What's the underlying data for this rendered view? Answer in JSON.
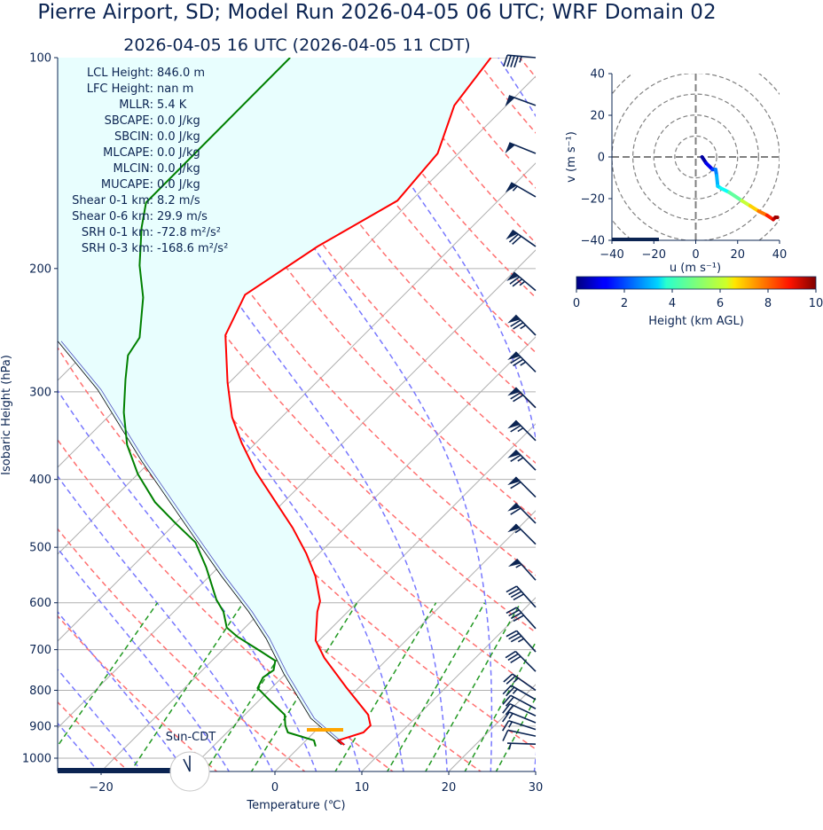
{
  "title": "Pierre Airport, SD; Model Run 2026-04-05 06 UTC; WRF Domain 02",
  "subtitle": "2026-04-05 16 UTC  (2026-04-05 11 CDT)",
  "colors": {
    "text": "#0b2452",
    "temperature": "#ff0000",
    "dewpoint": "#008000",
    "parcel": "#000000",
    "cin_fill": "#e8fefe",
    "lcl_marker": "#ffa500",
    "dry_adiabat": "#ff7070",
    "moist_adiabat": "#7878ff",
    "mixing_ratio": "#229922",
    "isotherm": "#b0b0b0"
  },
  "stats": [
    {
      "label": "LCL Height:",
      "value": "846.0 m"
    },
    {
      "label": "LFC Height:",
      "value": "nan m"
    },
    {
      "label": "MLLR:",
      "value": "5.4 K"
    },
    {
      "label": "SBCAPE:",
      "value": "0.0 J/kg"
    },
    {
      "label": "SBCIN:",
      "value": "0.0 J/kg"
    },
    {
      "label": "MLCAPE:",
      "value": "0.0 J/kg"
    },
    {
      "label": "MLCIN:",
      "value": "0.0 J/kg"
    },
    {
      "label": "MUCAPE:",
      "value": "0.0 J/kg"
    },
    {
      "label": "Shear 0-1 km:",
      "value": "8.2 m/s"
    },
    {
      "label": "Shear 0-6 km:",
      "value": "29.9 m/s"
    },
    {
      "label": "SRH 0-1 km:",
      "value": "-72.8 m²/s²"
    },
    {
      "label": "SRH 0-3 km:",
      "value": "-168.6 m²/s²"
    }
  ],
  "clock_label": "Sun-CDT",
  "chart_data": [
    {
      "type": "line",
      "subtype": "skew-t",
      "xlabel": "Temperature (℃)",
      "ylabel": "Isobaric Height (hPa)",
      "xlim": [
        -25,
        30
      ],
      "ylim": [
        1045,
        100
      ],
      "yscale": "log",
      "xticks": [
        -20,
        0,
        10,
        20,
        30
      ],
      "xtick_labels": [
        "−20",
        "0",
        "10",
        "20",
        "30"
      ],
      "yticks": [
        100,
        200,
        300,
        400,
        500,
        600,
        700,
        800,
        900,
        1000
      ],
      "ytick_labels": [
        "100",
        "200",
        "300",
        "400",
        "500",
        "600",
        "700",
        "800",
        "900",
        "1000"
      ],
      "grid": true,
      "lcl_pressure": 911,
      "temperature": {
        "p": [
          957,
          943,
          919,
          898,
          867,
          792,
          719,
          679,
          618,
          597,
          550,
          510,
          469,
          431,
          390,
          355,
          326,
          291,
          249,
          218,
          186,
          160,
          137,
          117,
          100
        ],
        "t": [
          4.9,
          3.7,
          5.7,
          5.7,
          4.2,
          -1.5,
          -7.4,
          -10.4,
          -13.5,
          -14.4,
          -17.8,
          -21.5,
          -26.0,
          -30.9,
          -36.7,
          -41.6,
          -45.7,
          -50.2,
          -55.9,
          -58.3,
          -55.5,
          -51.6,
          -52.4,
          -56.0,
          -57.3
        ]
      },
      "dewpoint": {
        "p": [
          962,
          943,
          919,
          898,
          867,
          828,
          794,
          767,
          749,
          726,
          705,
          671,
          651,
          618,
          594,
          534,
          492,
          462,
          431,
          393,
          357,
          321,
          288,
          266,
          251,
          220,
          198,
          175,
          161,
          100
        ],
        "t": [
          1.8,
          0.9,
          -3.0,
          -4.1,
          -5.4,
          -8.7,
          -11.6,
          -12.2,
          -11.8,
          -12.7,
          -15.3,
          -19.8,
          -22.1,
          -24.3,
          -26.5,
          -31.4,
          -35.5,
          -40.0,
          -44.8,
          -50.0,
          -54.6,
          -58.7,
          -62.3,
          -64.8,
          -65.5,
          -69.7,
          -73.8,
          -77.9,
          -80.3,
          -80.4
        ]
      },
      "parcel": {
        "p": [
          957,
          877,
          758,
          675,
          618,
          550,
          476,
          377,
          298,
          254
        ],
        "t": [
          4.6,
          -2.0,
          -10.2,
          -16.3,
          -21.4,
          -28.6,
          -37.2,
          -51.0,
          -64.3,
          -74.5
        ]
      },
      "wind_barbs_kt": [
        {
          "p": 100,
          "dir": 275,
          "spd": 45
        },
        {
          "p": 117,
          "dir": 290,
          "spd": 50
        },
        {
          "p": 137,
          "dir": 292,
          "spd": 50
        },
        {
          "p": 158,
          "dir": 300,
          "spd": 55
        },
        {
          "p": 186,
          "dir": 305,
          "spd": 70
        },
        {
          "p": 215,
          "dir": 310,
          "spd": 75
        },
        {
          "p": 249,
          "dir": 315,
          "spd": 75
        },
        {
          "p": 281,
          "dir": 315,
          "spd": 75
        },
        {
          "p": 316,
          "dir": 315,
          "spd": 70
        },
        {
          "p": 352,
          "dir": 315,
          "spd": 65
        },
        {
          "p": 388,
          "dir": 315,
          "spd": 65
        },
        {
          "p": 424,
          "dir": 315,
          "spd": 60
        },
        {
          "p": 462,
          "dir": 315,
          "spd": 60
        },
        {
          "p": 495,
          "dir": 315,
          "spd": 55
        },
        {
          "p": 557,
          "dir": 318,
          "spd": 55
        },
        {
          "p": 609,
          "dir": 318,
          "spd": 40
        },
        {
          "p": 653,
          "dir": 318,
          "spd": 40
        },
        {
          "p": 705,
          "dir": 318,
          "spd": 35
        },
        {
          "p": 752,
          "dir": 315,
          "spd": 30
        },
        {
          "p": 800,
          "dir": 305,
          "spd": 25
        },
        {
          "p": 825,
          "dir": 300,
          "spd": 25
        },
        {
          "p": 850,
          "dir": 298,
          "spd": 20
        },
        {
          "p": 870,
          "dir": 295,
          "spd": 20
        },
        {
          "p": 890,
          "dir": 292,
          "spd": 15
        },
        {
          "p": 910,
          "dir": 288,
          "spd": 15
        },
        {
          "p": 930,
          "dir": 282,
          "spd": 10
        },
        {
          "p": 955,
          "dir": 272,
          "spd": 5
        }
      ]
    },
    {
      "type": "line",
      "subtype": "hodograph",
      "xlabel": "u (m s⁻¹)",
      "ylabel": "v (m s⁻¹)",
      "xlim": [
        -40,
        40
      ],
      "ylim": [
        -40,
        40
      ],
      "xticks": [
        "−40",
        "−20",
        "0",
        "20",
        "40"
      ],
      "yticks": [
        "40",
        "20",
        "0",
        "−20",
        "−40"
      ],
      "rings": [
        10,
        20,
        30,
        40,
        50
      ],
      "u": [
        3,
        5,
        8,
        9.5,
        10,
        10.5,
        12,
        16,
        22,
        26,
        30,
        34,
        37,
        38,
        39
      ],
      "v": [
        0,
        -3,
        -6,
        -6,
        -9,
        -14,
        -15,
        -17,
        -21,
        -23.5,
        -26,
        -28,
        -30,
        -29,
        -29
      ],
      "height_km": [
        0,
        0.7,
        1.5,
        2.2,
        2.8,
        3.2,
        3.5,
        4.2,
        5.2,
        6.2,
        7.2,
        8.0,
        8.9,
        9.5,
        10
      ],
      "colorbar": {
        "label": "Height (km AGL)",
        "range": [
          0,
          10
        ],
        "ticks": [
          "0",
          "2",
          "4",
          "6",
          "8",
          "10"
        ],
        "colormap": "jet"
      }
    }
  ]
}
